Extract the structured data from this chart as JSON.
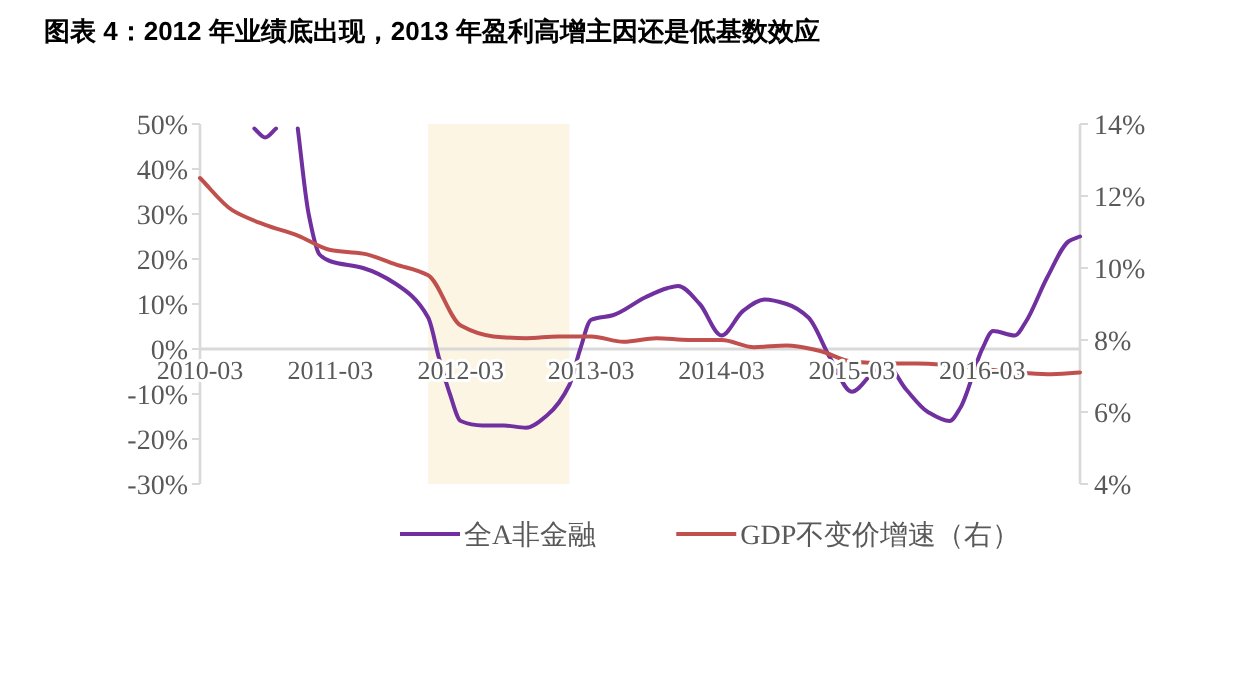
{
  "chart_data": {
    "type": "line",
    "title": "图表 4：2012 年业绩底出现，2013 年盈利高增主因还是低基数效应",
    "xlim": [
      "2010-03",
      "2016-12"
    ],
    "xticks": [
      "2010-03",
      "2011-03",
      "2012-03",
      "2013-03",
      "2014-03",
      "2015-03",
      "2016-03"
    ],
    "ylim": [
      -30,
      50
    ],
    "yticks": [
      {
        "value": -30,
        "label": "-30%"
      },
      {
        "value": -20,
        "label": "-20%"
      },
      {
        "value": -10,
        "label": "-10%"
      },
      {
        "value": 0,
        "label": "0%"
      },
      {
        "value": 10,
        "label": "10%"
      },
      {
        "value": 20,
        "label": "20%"
      },
      {
        "value": 30,
        "label": "30%"
      },
      {
        "value": 40,
        "label": "40%"
      },
      {
        "value": 50,
        "label": "50%"
      }
    ],
    "y2lim": [
      4,
      14
    ],
    "y2ticks": [
      {
        "value": 4,
        "label": "4%"
      },
      {
        "value": 6,
        "label": "6%"
      },
      {
        "value": 8,
        "label": "8%"
      },
      {
        "value": 10,
        "label": "10%"
      },
      {
        "value": 12,
        "label": "12%"
      },
      {
        "value": 14,
        "label": "14%"
      }
    ],
    "grid": false,
    "legend": "bottom",
    "marker": "none",
    "line_style": "solid",
    "bands": [
      {
        "axis": "x",
        "from": "2011-12",
        "to": "2013-01",
        "color": "#fdf5e4"
      }
    ],
    "series": [
      {
        "name": "全A非金融",
        "color": "#7030a0",
        "x": [
          "2010-08",
          "2010-09",
          "2010-10",
          "2010-11",
          "2010-12",
          "2011-01",
          "2011-02",
          "2011-03",
          "2011-06",
          "2011-09",
          "2011-12",
          "2012-01",
          "2012-02",
          "2012-03",
          "2012-05",
          "2012-07",
          "2012-09",
          "2012-11",
          "2013-01",
          "2013-02",
          "2013-03",
          "2013-05",
          "2013-08",
          "2013-10",
          "2013-11",
          "2014-01",
          "2014-03",
          "2014-05",
          "2014-07",
          "2014-09",
          "2014-11",
          "2015-01",
          "2015-03",
          "2015-05",
          "2015-06",
          "2015-08",
          "2015-10",
          "2015-12",
          "2016-01",
          "2016-03",
          "2016-04",
          "2016-06",
          "2016-07",
          "2016-09",
          "2016-11",
          "2016-12"
        ],
        "values": [
          49,
          47,
          49,
          null,
          49,
          30,
          21,
          19.5,
          18,
          14.5,
          7,
          -2,
          -10,
          -16,
          -17,
          -17,
          -17.5,
          -14.6,
          -8,
          0,
          6.5,
          7.5,
          11.5,
          13.5,
          14,
          10,
          3,
          8.5,
          11,
          10,
          7,
          -2,
          -9.5,
          -5,
          -3,
          -9,
          -14,
          -16,
          -13,
          0,
          4,
          3,
          6,
          16,
          24,
          25
        ]
      },
      {
        "name": "GDP不变价增速（右）",
        "color": "#c0504d",
        "axis": "y2",
        "x": [
          "2010-03",
          "2010-06",
          "2010-09",
          "2010-12",
          "2011-03",
          "2011-06",
          "2011-09",
          "2011-12",
          "2012-03",
          "2012-06",
          "2012-09",
          "2012-12",
          "2013-03",
          "2013-06",
          "2013-09",
          "2013-12",
          "2014-03",
          "2014-06",
          "2014-09",
          "2014-12",
          "2015-03",
          "2015-06",
          "2015-09",
          "2015-12",
          "2016-03",
          "2016-06",
          "2016-09",
          "2016-12"
        ],
        "values": [
          12.5,
          11.6,
          11.2,
          10.9,
          10.5,
          10.4,
          10.1,
          9.8,
          8.4,
          8.1,
          8.05,
          8.1,
          8.1,
          7.95,
          8.05,
          8,
          8,
          7.8,
          7.85,
          7.7,
          7.4,
          7.35,
          7.35,
          7.3,
          7.2,
          7.1,
          7.05,
          7.1
        ]
      }
    ]
  }
}
